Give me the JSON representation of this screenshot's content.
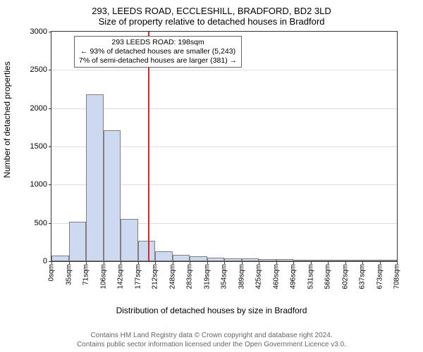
{
  "title_address": "293, LEEDS ROAD, ECCLESHILL, BRADFORD, BD2 3LD",
  "title_subtitle": "Size of property relative to detached houses in Bradford",
  "yaxis_label": "Number of detached properties",
  "xaxis_label": "Distribution of detached houses by size in Bradford",
  "copyright_line1": "Contains HM Land Registry data © Crown copyright and database right 2024.",
  "copyright_line2": "Contains public sector information licensed under the Open Government Licence v3.0.",
  "annotation": {
    "line1": "293 LEEDS ROAD: 198sqm",
    "line2": "← 93% of detached houses are smaller (5,243)",
    "line3": "7% of semi-detached houses are larger (381) →"
  },
  "chart": {
    "type": "histogram",
    "ylim": [
      0,
      3000
    ],
    "ytick_step": 500,
    "yticks": [
      0,
      500,
      1000,
      1500,
      2000,
      2500,
      3000
    ],
    "xticks_labels": [
      "0sqm",
      "35sqm",
      "71sqm",
      "106sqm",
      "142sqm",
      "177sqm",
      "212sqm",
      "248sqm",
      "283sqm",
      "319sqm",
      "354sqm",
      "389sqm",
      "425sqm",
      "460sqm",
      "496sqm",
      "531sqm",
      "566sqm",
      "602sqm",
      "637sqm",
      "673sqm",
      "708sqm"
    ],
    "bar_values": [
      70,
      520,
      2180,
      1710,
      550,
      265,
      130,
      82,
      62,
      48,
      40,
      36,
      30,
      32,
      10,
      6,
      4,
      4,
      2,
      2
    ],
    "bar_color": "#ccd9ef",
    "bar_border_color": "#7f7f7f",
    "grid_color": "#dddddd",
    "axis_color": "#333333",
    "ref_line_color": "#d62728",
    "ref_line_x_sqm": 198,
    "x_max_sqm": 708,
    "background_color": "#ffffff",
    "title_fontsize": 13,
    "label_fontsize": 12,
    "tick_fontsize": 11,
    "xtick_fontsize": 10,
    "annotation_fontsize": 10.5
  }
}
